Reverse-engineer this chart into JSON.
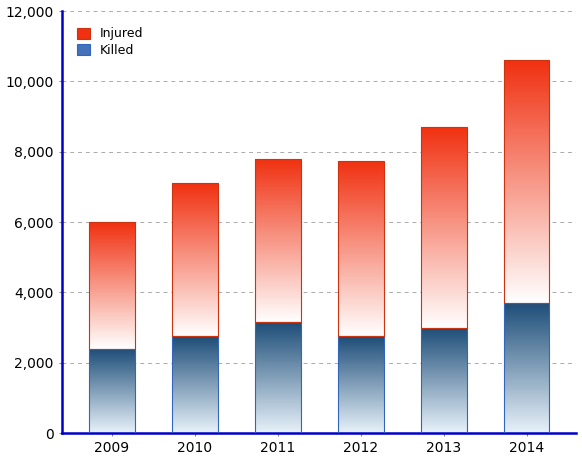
{
  "years": [
    "2009",
    "2010",
    "2011",
    "2012",
    "2013",
    "2014"
  ],
  "killed": [
    2400,
    2750,
    3150,
    2750,
    3000,
    3700
  ],
  "injured": [
    3600,
    4350,
    4650,
    5000,
    5700,
    6900
  ],
  "ylim": [
    0,
    12000
  ],
  "yticks": [
    0,
    2000,
    4000,
    6000,
    8000,
    10000,
    12000
  ],
  "background_color": "#ffffff",
  "grid_color": "#aaaaaa",
  "bar_width": 0.55,
  "spine_color": "#0000cc"
}
